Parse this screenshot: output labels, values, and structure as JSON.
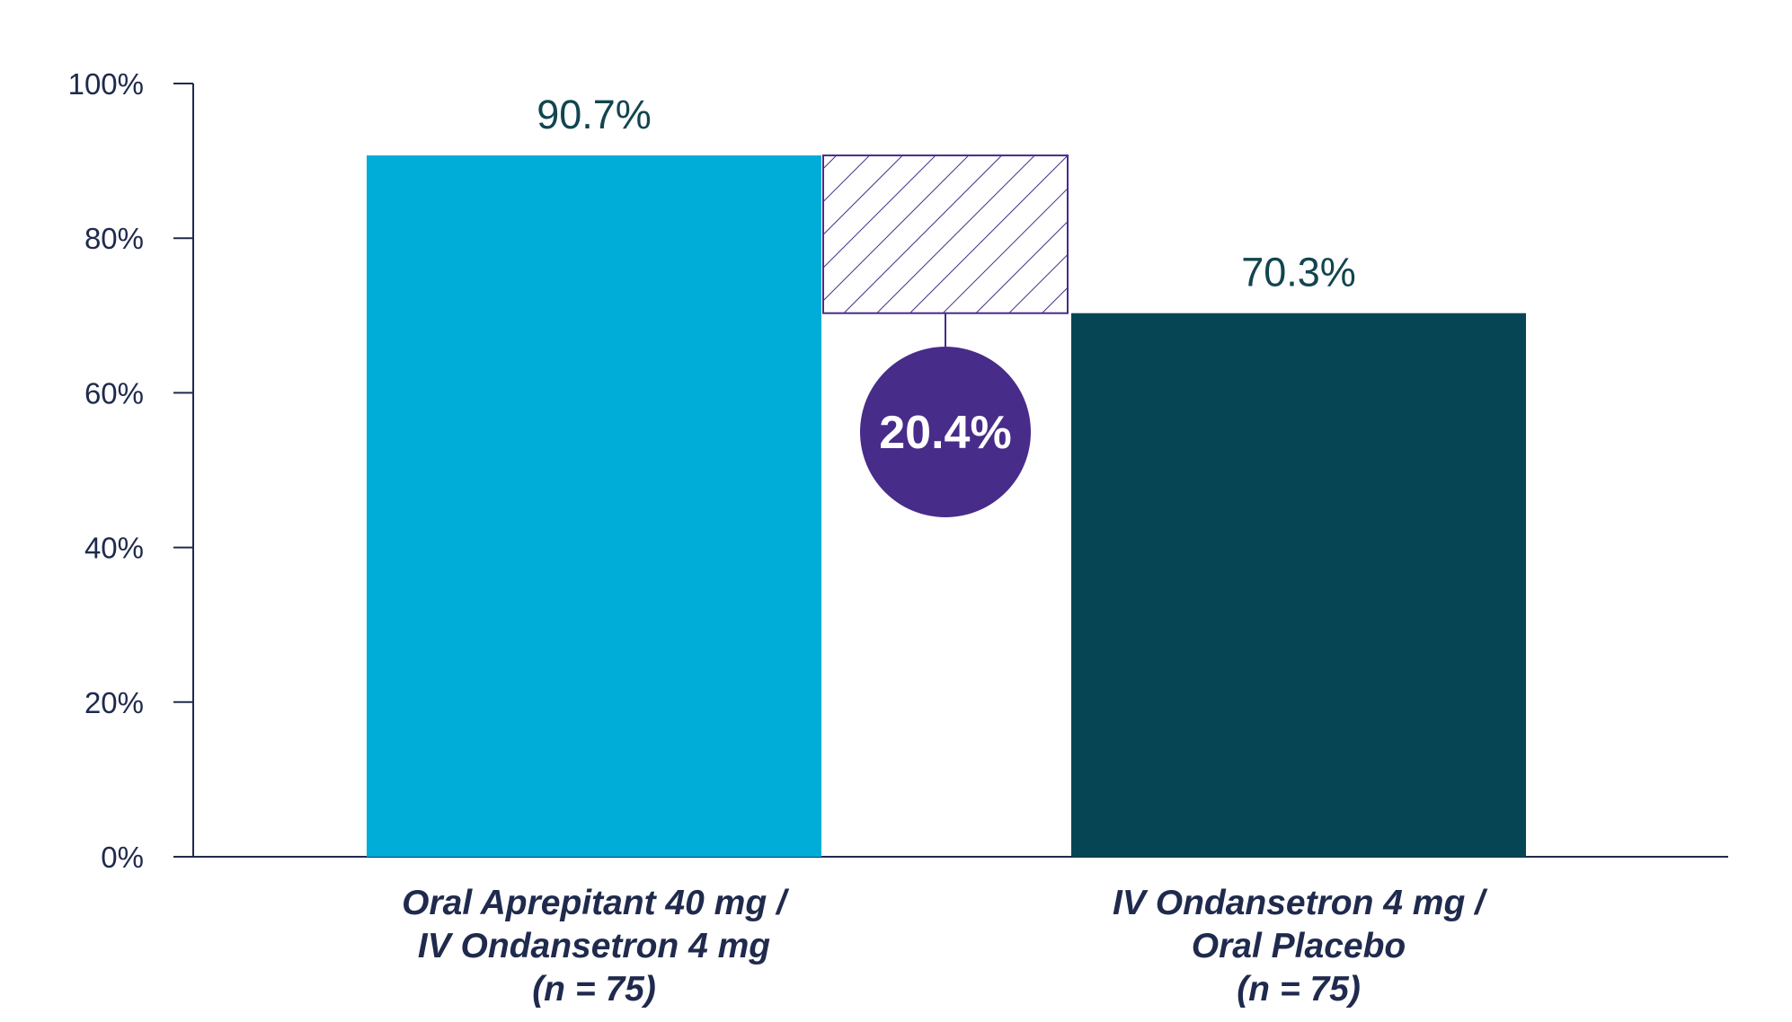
{
  "chart_data": {
    "type": "bar",
    "title": "",
    "xlabel": "",
    "ylabel": "",
    "ylim": [
      0,
      100
    ],
    "yticks": [
      0,
      20,
      40,
      60,
      80,
      100
    ],
    "ytick_labels": [
      "0%",
      "20%",
      "40%",
      "60%",
      "80%",
      "100%"
    ],
    "categories": [
      [
        "Oral Aprepitant 40 mg /",
        "IV Ondansetron 4 mg",
        "(n = 75)"
      ],
      [
        "IV Ondansetron 4 mg /",
        "Oral Placebo",
        "(n = 75)"
      ]
    ],
    "values": [
      90.7,
      70.3
    ],
    "value_labels": [
      "90.7%",
      "70.3%"
    ],
    "bar_colors": [
      "#00acd8",
      "#064654"
    ],
    "difference": {
      "value": 20.4,
      "label": "20.4%",
      "color": "#472c8a"
    },
    "grid": false,
    "legend": "none"
  }
}
